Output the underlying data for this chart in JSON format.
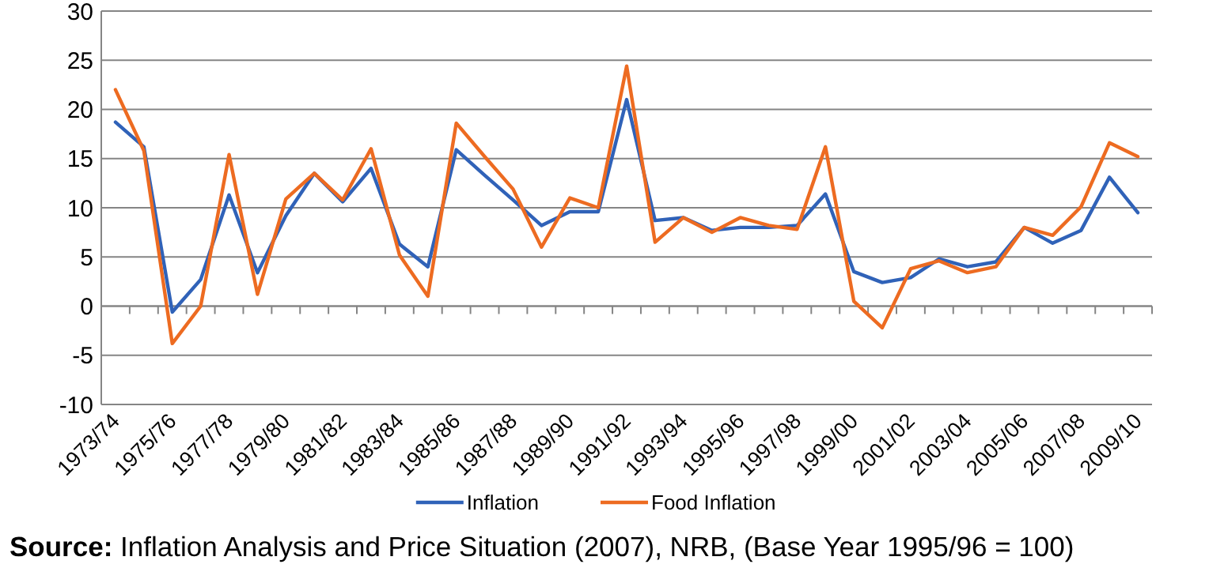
{
  "chart_data": {
    "type": "line",
    "categories": [
      "1973/74",
      null,
      "1975/76",
      null,
      "1977/78",
      null,
      "1979/80",
      null,
      "1981/82",
      null,
      "1983/84",
      null,
      "1985/86",
      null,
      "1987/88",
      null,
      "1989/90",
      null,
      "1991/92",
      null,
      "1993/94",
      null,
      "1995/96",
      null,
      "1997/98",
      null,
      "1999/00",
      null,
      "2001/02",
      null,
      "2003/04",
      null,
      "2005/06",
      null,
      "2007/08",
      null,
      "2009/10"
    ],
    "series": [
      {
        "name": "Inflation",
        "color": "#3062b8",
        "values": [
          18.7,
          16.2,
          -0.6,
          2.7,
          11.3,
          3.4,
          9.2,
          13.5,
          10.6,
          14.0,
          6.3,
          4.0,
          15.9,
          13.3,
          10.8,
          8.2,
          9.6,
          9.6,
          21.0,
          8.7,
          9.0,
          7.7,
          8.0,
          8.0,
          8.2,
          11.4,
          3.5,
          2.4,
          2.9,
          4.8,
          4.0,
          4.5,
          8.0,
          6.4,
          7.7,
          13.1,
          9.5
        ]
      },
      {
        "name": "Food Inflation",
        "color": "#ed6b21",
        "values": [
          22.0,
          15.8,
          -3.8,
          0.0,
          15.4,
          1.2,
          10.9,
          13.5,
          10.8,
          16.0,
          5.2,
          1.0,
          18.6,
          15.2,
          11.9,
          6.0,
          11.0,
          10.0,
          24.4,
          6.5,
          9.0,
          7.5,
          9.0,
          8.2,
          7.8,
          16.2,
          0.5,
          -2.2,
          3.8,
          4.6,
          3.4,
          4.0,
          8.0,
          7.2,
          10.1,
          16.6,
          15.2
        ]
      }
    ],
    "ylim": [
      -10,
      30
    ],
    "yticks": [
      -10,
      -5,
      0,
      5,
      10,
      15,
      20,
      25,
      30
    ],
    "grid": "y",
    "legend": "bottom",
    "line_style": "solid",
    "marker": "none",
    "annotations": [
      "Source: Inflation Analysis and Price Situation (2007), NRB, (Base Year 1995/96 = 100)"
    ]
  }
}
